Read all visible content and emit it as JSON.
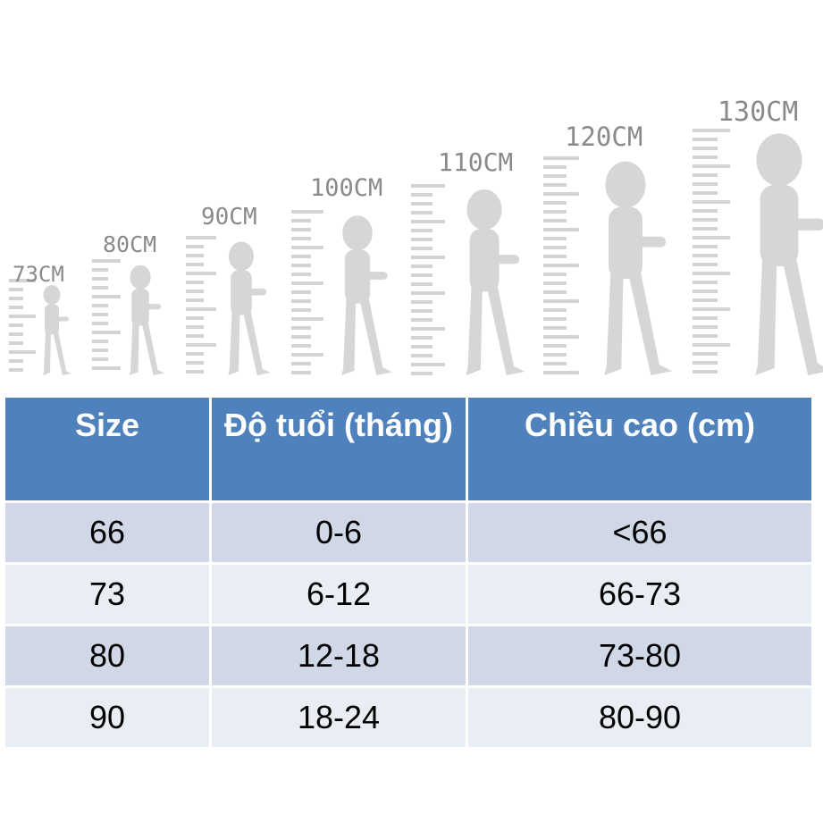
{
  "illustration": {
    "height_labels": [
      "73CM",
      "80CM",
      "90CM",
      "100CM",
      "110CM",
      "120CM",
      "130CM"
    ]
  },
  "size_table": {
    "headers": [
      "Size",
      "Độ tuổi (tháng)",
      "Chiều cao (cm)"
    ],
    "rows": [
      [
        "66",
        "0-6",
        "<66"
      ],
      [
        "73",
        "6-12",
        "66-73"
      ],
      [
        "80",
        "12-18",
        "73-80"
      ],
      [
        "90",
        "18-24",
        "80-90"
      ]
    ],
    "colors": {
      "header": "#4f81bd",
      "row_dark": "#d0d8e8",
      "row_light": "#e9edf4"
    }
  }
}
